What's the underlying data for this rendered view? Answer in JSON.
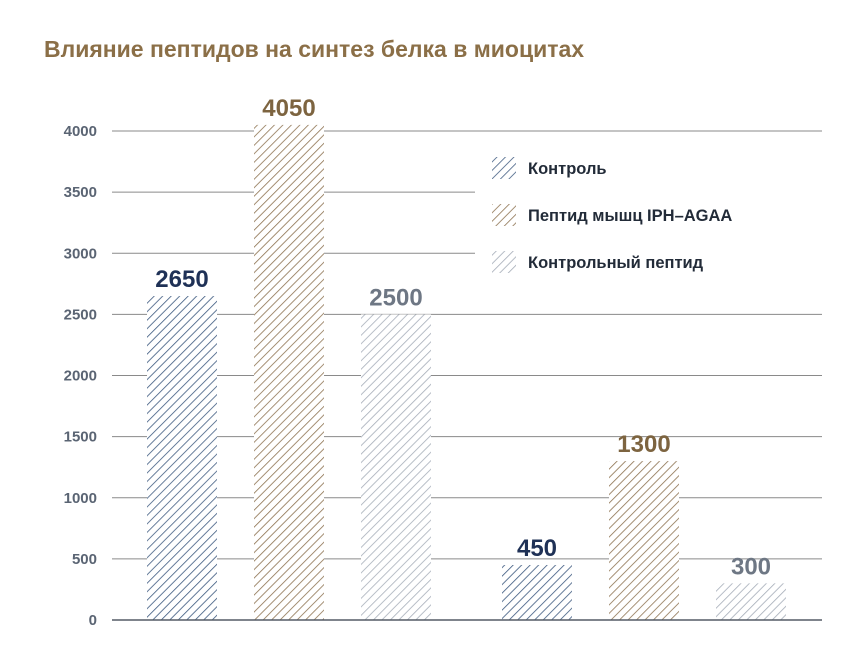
{
  "chart_data": {
    "type": "bar",
    "title": "Влияние пептидов на синтез белка в миоцитах",
    "ylim": [
      0,
      4000
    ],
    "yticks": [
      0,
      500,
      1000,
      1500,
      2000,
      2500,
      3000,
      3500,
      4000
    ],
    "grid": true,
    "legend_position": "top-right",
    "groups": 2,
    "series": [
      {
        "name": "Контроль",
        "values": [
          2650,
          450
        ],
        "color": "#3e5a80",
        "label_color": "#1f3156"
      },
      {
        "name": "Пептид мышц IPH–AGAA",
        "values": [
          4050,
          1300
        ],
        "color": "#8d7250",
        "label_color": "#7d6440"
      },
      {
        "name": "Контрольный пептид",
        "values": [
          2500,
          300
        ],
        "color": "#a6aeb9",
        "label_color": "#6e7784"
      }
    ]
  },
  "colors": {
    "title": "#8b6f47",
    "grid": "#8a8a8a",
    "tick": "#5a6473"
  }
}
